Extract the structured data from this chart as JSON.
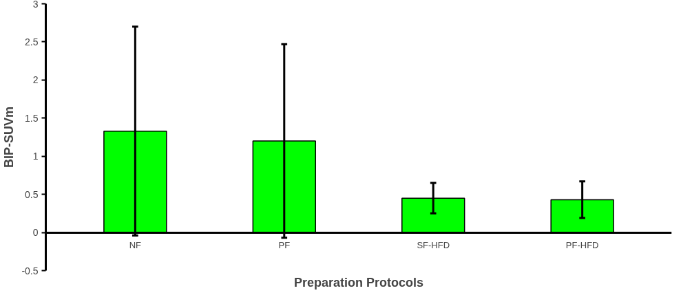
{
  "chart_data": {
    "type": "bar",
    "xlabel": "Preparation Protocols",
    "ylabel": "BIP-SUVm",
    "categories": [
      "NF",
      "PF",
      "SF-HFD",
      "PF-HFD"
    ],
    "values": [
      1.33,
      1.2,
      0.45,
      0.43
    ],
    "errors": [
      1.37,
      1.27,
      0.2,
      0.24
    ],
    "color": "#00ff00",
    "ylim": [
      -0.5,
      3
    ],
    "yticks": [
      -0.5,
      0,
      0.5,
      1,
      1.5,
      2,
      2.5,
      3
    ],
    "grid": false
  }
}
